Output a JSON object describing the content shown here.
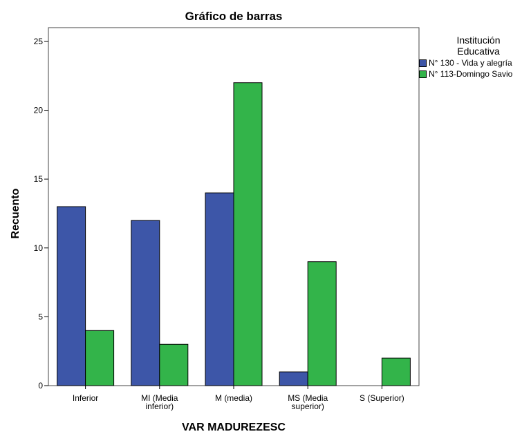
{
  "chart_data": {
    "type": "bar",
    "title": "Gráfico de barras",
    "xlabel": "VAR  MADUREZESC",
    "ylabel": "Recuento",
    "ylim": [
      0,
      26
    ],
    "yticks": [
      0,
      5,
      10,
      15,
      20,
      25
    ],
    "categories": [
      [
        "Inferior"
      ],
      [
        "MI (Media",
        "inferior)"
      ],
      [
        "M (media)"
      ],
      [
        "MS (Media",
        "superior)"
      ],
      [
        "S (Superior)"
      ]
    ],
    "legend": {
      "title_lines": [
        "Institución",
        "Educativa"
      ],
      "placement": "right"
    },
    "series": [
      {
        "name": "N° 130 - Vida y alegría",
        "color": "#3d56a8",
        "values": [
          13,
          12,
          14,
          1,
          0
        ]
      },
      {
        "name": "N° 113-Domingo Savio",
        "color": "#33b44a",
        "values": [
          4,
          3,
          22,
          9,
          2
        ]
      }
    ]
  }
}
